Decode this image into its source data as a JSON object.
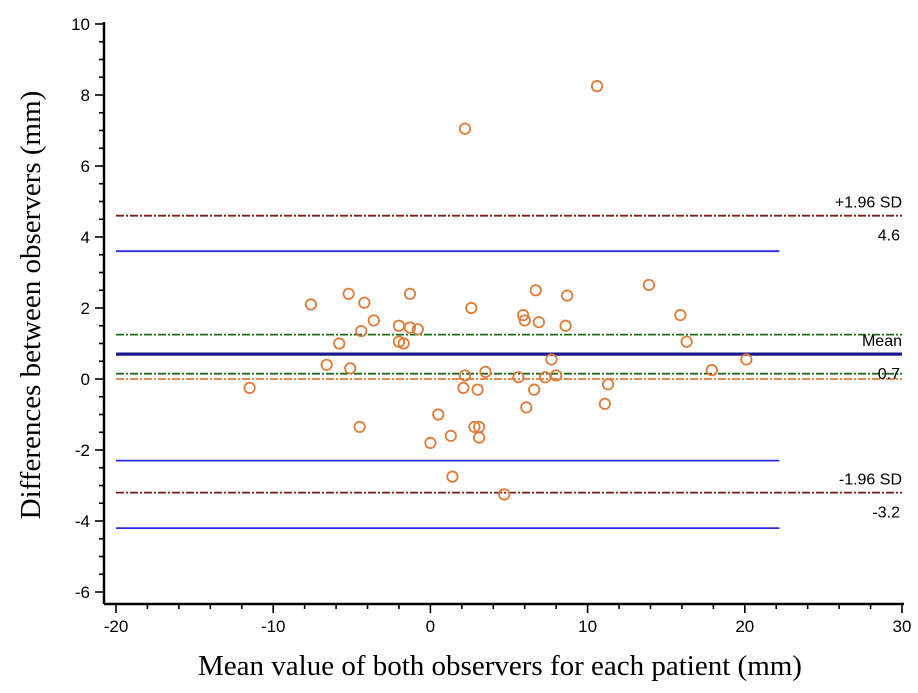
{
  "chart_data": {
    "type": "scatter",
    "title": "",
    "xlabel": "Mean value of both observers for each patient (mm)",
    "ylabel": "Differences between observers (mm)",
    "xlim": [
      -20,
      30
    ],
    "ylim": [
      -6,
      10
    ],
    "x_ticks": [
      "-20",
      "-10",
      "0",
      "10",
      "20",
      "30"
    ],
    "x_tick_values": [
      -20,
      -10,
      0,
      10,
      20,
      30
    ],
    "y_ticks": [
      "-6",
      "-4",
      "-2",
      "0",
      "2",
      "4",
      "6",
      "8",
      "10"
    ],
    "y_tick_values": [
      -6,
      -4,
      -2,
      0,
      2,
      4,
      6,
      8,
      10
    ],
    "grid": false,
    "legend": "none",
    "series": [
      {
        "marker": "open-circle",
        "color": "#E07B39",
        "points": [
          [
            -11.5,
            -0.25
          ],
          [
            -7.6,
            2.1
          ],
          [
            -6.6,
            0.4
          ],
          [
            -5.8,
            1.0
          ],
          [
            -5.2,
            2.4
          ],
          [
            -5.1,
            0.3
          ],
          [
            -4.5,
            -1.35
          ],
          [
            -4.4,
            1.35
          ],
          [
            -4.2,
            2.15
          ],
          [
            -3.6,
            1.65
          ],
          [
            -2.0,
            1.5
          ],
          [
            -2.0,
            1.05
          ],
          [
            -1.7,
            1.0
          ],
          [
            -1.3,
            2.4
          ],
          [
            -1.3,
            1.45
          ],
          [
            -0.8,
            1.4
          ],
          [
            0.0,
            -1.8
          ],
          [
            0.5,
            -1.0
          ],
          [
            1.3,
            -1.6
          ],
          [
            1.4,
            -2.75
          ],
          [
            2.1,
            -0.25
          ],
          [
            2.2,
            0.1
          ],
          [
            2.2,
            7.05
          ],
          [
            2.6,
            2.0
          ],
          [
            2.8,
            -1.35
          ],
          [
            3.0,
            -0.3
          ],
          [
            3.1,
            -1.35
          ],
          [
            3.1,
            -1.65
          ],
          [
            3.5,
            0.2
          ],
          [
            4.7,
            -3.25
          ],
          [
            5.6,
            0.05
          ],
          [
            5.9,
            1.8
          ],
          [
            6.0,
            1.65
          ],
          [
            6.1,
            -0.8
          ],
          [
            6.6,
            -0.3
          ],
          [
            6.7,
            2.5
          ],
          [
            6.9,
            1.6
          ],
          [
            7.3,
            0.05
          ],
          [
            7.7,
            0.55
          ],
          [
            8.0,
            0.1
          ],
          [
            8.6,
            1.5
          ],
          [
            8.7,
            2.35
          ],
          [
            10.6,
            8.25
          ],
          [
            11.1,
            -0.7
          ],
          [
            11.3,
            -0.15
          ],
          [
            13.9,
            2.65
          ],
          [
            15.9,
            1.8
          ],
          [
            16.3,
            1.05
          ],
          [
            17.9,
            0.25
          ],
          [
            20.1,
            0.55
          ]
        ]
      }
    ],
    "reference_lines": [
      {
        "id": "mean",
        "y": 0.7,
        "style": "solid-thick",
        "color": "#1A1A8C",
        "label": "Mean",
        "value_label": "0.7"
      },
      {
        "id": "upper-loa",
        "y": 4.6,
        "style": "dash-dot",
        "color": "#7A1A1A",
        "label": "+1.96 SD",
        "value_label": "4.6"
      },
      {
        "id": "lower-loa",
        "y": -3.2,
        "style": "dash-dot",
        "color": "#7A1A1A",
        "label": "-1.96 SD",
        "value_label": "-3.2"
      },
      {
        "id": "zero",
        "y": 0.0,
        "style": "dash-dot",
        "color": "#E07B39"
      },
      {
        "id": "mean-ci-upper",
        "y": 1.25,
        "style": "dash-dot",
        "color": "#1F6B1F"
      },
      {
        "id": "mean-ci-lower",
        "y": 0.15,
        "style": "dash-dot",
        "color": "#1F6B1F"
      },
      {
        "id": "upper-loa-ci",
        "y": 3.6,
        "style": "solid",
        "color": "#2A2AE0",
        "x_end": 22.2
      },
      {
        "id": "lower-loa-ci-upper",
        "y": -2.3,
        "style": "solid",
        "color": "#2A2AE0",
        "x_end": 22.2
      },
      {
        "id": "lower-loa-ci-lower",
        "y": -4.2,
        "style": "solid",
        "color": "#2A2AE0",
        "x_end": 22.2
      }
    ]
  }
}
